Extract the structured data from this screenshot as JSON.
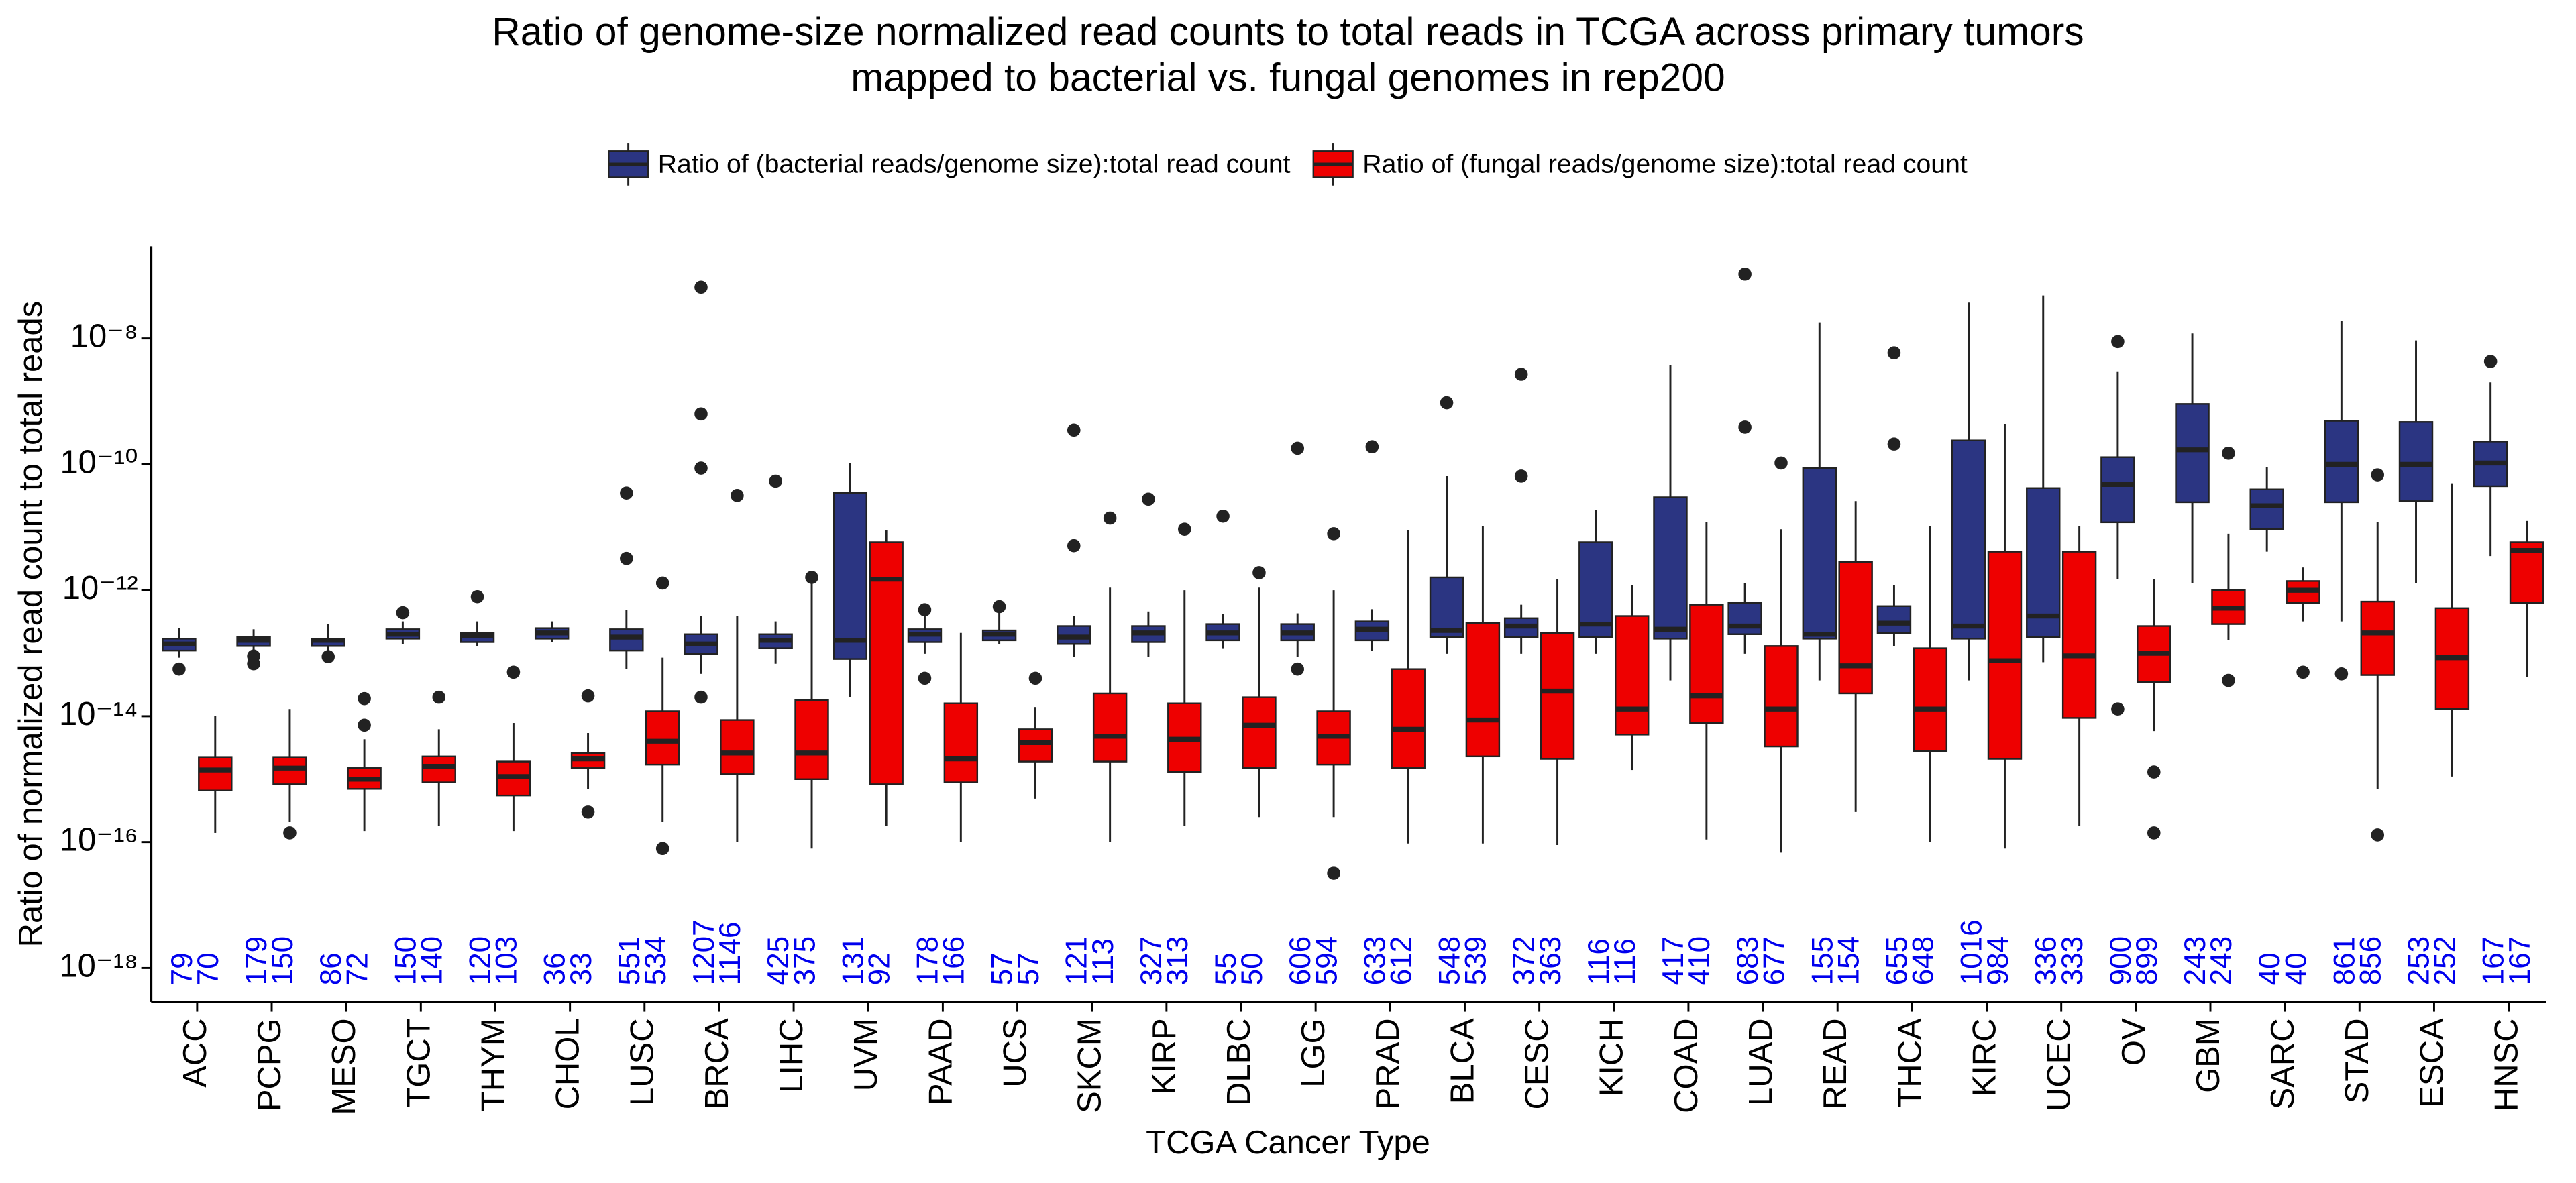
{
  "chart_data": {
    "type": "box",
    "title": [
      "Ratio of genome-size normalized read counts to total reads in TCGA across primary tumors",
      "mapped to bacterial vs. fungal genomes in rep200"
    ],
    "x_label": "TCGA Cancer Type",
    "y_label": "Ratio of normalized read count to total reads",
    "log_scale": true,
    "legend": "top",
    "count_color": "#0000ee",
    "categories": [
      "ACC",
      "PCPG",
      "MESO",
      "TGCT",
      "THYM",
      "CHOL",
      "LUSC",
      "BRCA",
      "LIHC",
      "UVM",
      "PAAD",
      "UCS",
      "SKCM",
      "KIRP",
      "DLBC",
      "LGG",
      "PRAD",
      "BLCA",
      "CESC",
      "KICH",
      "COAD",
      "LUAD",
      "READ",
      "THCA",
      "KIRC",
      "UCEC",
      "OV",
      "GBM",
      "SARC",
      "STAD",
      "ESCA",
      "HNSC"
    ],
    "ylim": [
      2.9e-19,
      2.9e-07
    ],
    "yticks": [
      {
        "value": 1e-08,
        "label": "10⁻⁸"
      },
      {
        "value": 1e-10,
        "label": "10⁻¹⁰"
      },
      {
        "value": 1e-12,
        "label": "10⁻¹²"
      },
      {
        "value": 1e-14,
        "label": "10⁻¹⁴"
      },
      {
        "value": 1e-16,
        "label": "10⁻¹⁶"
      },
      {
        "value": 1e-18,
        "label": "10⁻¹⁸"
      }
    ],
    "series": [
      {
        "name": "Ratio of (bacterial reads/genome size):total read count",
        "color": "#2b3582",
        "q1": [
          1.1e-13,
          1.3e-13,
          1.3e-13,
          1.7e-13,
          1.5e-13,
          1.7e-13,
          1.1e-13,
          9.8e-14,
          1.2e-13,
          8.1e-14,
          1.5e-13,
          1.6e-13,
          1.4e-13,
          1.5e-13,
          1.6e-13,
          1.6e-13,
          1.6e-13,
          1.8e-13,
          1.8e-13,
          1.8e-13,
          1.7e-13,
          2e-13,
          1.7e-13,
          2.1e-13,
          1.7e-13,
          1.8e-13,
          1.2e-11,
          2.5e-11,
          9.3e-12,
          2.5e-11,
          2.6e-11,
          4.5e-11
        ],
        "median": [
          1.4e-13,
          1.6e-13,
          1.6e-13,
          2e-13,
          1.9e-13,
          2.1e-13,
          1.8e-13,
          1.4e-13,
          1.6e-13,
          1.6e-13,
          2e-13,
          2e-13,
          1.8e-13,
          2.1e-13,
          2.1e-13,
          2.1e-13,
          2.4e-13,
          2.3e-13,
          2.7e-13,
          2.9e-13,
          2.4e-13,
          2.7e-13,
          2e-13,
          3e-13,
          2.7e-13,
          3.9e-13,
          4.8e-11,
          1.7e-10,
          2.2e-11,
          1e-10,
          1e-10,
          1.05e-10
        ],
        "q3": [
          1.7e-13,
          1.8e-13,
          1.7e-13,
          2.4e-13,
          2.1e-13,
          2.5e-13,
          2.4e-13,
          2e-13,
          2e-13,
          3.5e-11,
          2.4e-13,
          2.3e-13,
          2.7e-13,
          2.7e-13,
          2.9e-13,
          2.9e-13,
          3.2e-13,
          1.6e-12,
          3.6e-13,
          5.8e-12,
          3e-11,
          6.3e-13,
          8.7e-11,
          5.6e-13,
          2.4e-10,
          4.2e-11,
          1.3e-10,
          9.1e-10,
          4e-11,
          4.9e-10,
          4.7e-10,
          2.3e-10
        ],
        "whisker_low": [
          8.5e-14,
          1.1e-13,
          1.1e-13,
          1.4e-13,
          1.3e-13,
          1.5e-13,
          5.6e-14,
          4.7e-14,
          6.8e-14,
          2e-14,
          9.8e-14,
          1.4e-13,
          8.8e-14,
          8.8e-14,
          1.2e-13,
          8.8e-14,
          1.1e-13,
          9.8e-14,
          9.8e-14,
          9.8e-14,
          3.7e-14,
          9.8e-14,
          3.7e-14,
          1.3e-13,
          3.7e-14,
          7.2e-14,
          1.5e-12,
          1.3e-12,
          4.1e-12,
          3.2e-13,
          1.3e-12,
          3.5e-12
        ],
        "whisker_high": [
          2.5e-13,
          2.4e-13,
          2.9e-13,
          3.2e-13,
          3.2e-13,
          3.2e-13,
          4.9e-13,
          3.9e-13,
          3.2e-13,
          1.05e-10,
          3.9e-13,
          4.6e-13,
          3.9e-13,
          4.6e-13,
          4.2e-13,
          4.3e-13,
          5e-13,
          6.5e-11,
          5.9e-13,
          1.9e-11,
          3.8e-09,
          1.3e-12,
          1.8e-08,
          1.2e-12,
          3.7e-08,
          4.8e-08,
          3e-09,
          1.2e-08,
          9.1e-11,
          1.9e-08,
          9.3e-09,
          2e-09
        ],
        "outliers": [
          [
            5.6e-14
          ],
          [
            9e-14,
            6.8e-14
          ],
          [
            8.8e-14
          ],
          [
            4.4e-13
          ],
          [
            7.9e-13
          ],
          [],
          [
            3.5e-11,
            3.2e-12
          ],
          [
            6.5e-08,
            6.3e-10,
            8.7e-11,
            2e-14
          ],
          [
            5.4e-11
          ],
          [],
          [
            4.9e-13,
            4e-14
          ],
          [
            5.5e-13
          ],
          [
            3.5e-10,
            5.1e-12
          ],
          [
            2.8e-11
          ],
          [
            1.5e-11
          ],
          [
            1.8e-10,
            5.6e-14
          ],
          [
            1.9e-10
          ],
          [
            9.5e-10
          ],
          [
            2.7e-09,
            6.5e-11
          ],
          [],
          [],
          [
            1.05e-07,
            3.9e-10
          ],
          [],
          [
            5.9e-09,
            2.1e-10
          ],
          [],
          [],
          [
            8.9e-09,
            1.3e-14
          ],
          [],
          [],
          [
            4.7e-14
          ],
          [],
          [
            4.3e-09
          ]
        ],
        "n": [
          79,
          179,
          86,
          150,
          120,
          36,
          551,
          1207,
          425,
          131,
          178,
          57,
          121,
          327,
          55,
          606,
          633,
          548,
          372,
          116,
          417,
          683,
          155,
          655,
          1016,
          336,
          900,
          243,
          40,
          861,
          253,
          167
        ]
      },
      {
        "name": "Ratio of (fungal reads/genome size):total read count",
        "color": "#ee0000",
        "q1": [
          6.6e-16,
          8.3e-16,
          7e-16,
          8.9e-16,
          5.5e-16,
          1.5e-15,
          1.7e-15,
          1.2e-15,
          1e-15,
          8.3e-16,
          8.9e-16,
          1.9e-15,
          1.9e-15,
          1.3e-15,
          1.5e-15,
          1.7e-15,
          1.5e-15,
          2.3e-15,
          2.1e-15,
          5.1e-15,
          7.8e-15,
          3.3e-15,
          2.3e-14,
          2.8e-15,
          2.1e-15,
          9.4e-15,
          3.5e-14,
          2.9e-13,
          6.3e-13,
          4.5e-14,
          1.3e-14,
          6.3e-13
        ],
        "median": [
          1.4e-15,
          1.5e-15,
          1e-15,
          1.6e-15,
          1.1e-15,
          2.1e-15,
          4e-15,
          2.6e-15,
          2.6e-15,
          1.5e-12,
          2.1e-15,
          3.8e-15,
          4.8e-15,
          4.3e-15,
          7.2e-15,
          4.8e-15,
          6.2e-15,
          8.7e-15,
          2.5e-14,
          1.3e-14,
          2.1e-14,
          1.3e-14,
          6.3e-14,
          1.3e-14,
          7.6e-14,
          9.1e-14,
          1e-13,
          5.2e-13,
          1e-12,
          2.1e-13,
          8.5e-14,
          4.3e-12
        ],
        "q3": [
          2.2e-15,
          2.2e-15,
          1.5e-15,
          2.3e-15,
          1.9e-15,
          2.6e-15,
          1.2e-14,
          8.7e-15,
          1.8e-14,
          5.8e-12,
          1.6e-14,
          6.2e-15,
          2.3e-14,
          1.6e-14,
          2e-14,
          1.2e-14,
          5.6e-14,
          3e-13,
          2.1e-13,
          3.9e-13,
          5.9e-13,
          1.3e-13,
          2.8e-12,
          1.2e-13,
          4.1e-12,
          4.1e-12,
          2.7e-13,
          1e-12,
          1.4e-12,
          6.6e-13,
          5.2e-13,
          5.8e-12
        ],
        "whisker_low": [
          1.4e-16,
          2.1e-16,
          1.5e-16,
          1.8e-16,
          1.5e-16,
          7e-16,
          2.1e-16,
          1e-16,
          7.9e-17,
          1.8e-16,
          1e-16,
          4.9e-16,
          1e-16,
          1.8e-16,
          2.5e-16,
          2.5e-16,
          9.5e-17,
          9.5e-17,
          9e-17,
          1.4e-15,
          1.1e-16,
          6.8e-17,
          3e-16,
          1e-16,
          7.9e-17,
          1.8e-16,
          5.8e-15,
          1.6e-13,
          3.2e-13,
          7e-16,
          1.1e-15,
          4.2e-14
        ],
        "whisker_high": [
          1e-14,
          1.3e-14,
          4.3e-15,
          6.2e-15,
          7.8e-15,
          5.4e-15,
          8.5e-14,
          3.9e-13,
          1.3e-12,
          8.9e-12,
          2.1e-13,
          1.4e-14,
          1.1e-12,
          1e-12,
          1.1e-12,
          1e-12,
          8.9e-12,
          1.05e-11,
          1.5e-12,
          1.2e-12,
          1.2e-11,
          9.3e-12,
          2.6e-11,
          1.05e-11,
          4.4e-10,
          1.05e-11,
          1.5e-12,
          7.9e-12,
          2.3e-12,
          1.2e-11,
          5e-11,
          1.26e-11
        ],
        "outliers": [
          [],
          [
            1.4e-16
          ],
          [
            1.9e-14,
            7.2e-15
          ],
          [
            2e-14
          ],
          [
            5e-14
          ],
          [
            2.1e-14,
            3e-16
          ],
          [
            7.9e-17,
            1.3e-12
          ],
          [
            3.2e-11
          ],
          [
            1.6e-12
          ],
          [],
          [],
          [
            4e-14
          ],
          [
            1.4e-11
          ],
          [
            9.3e-12
          ],
          [
            1.9e-12
          ],
          [
            3.2e-17,
            7.9e-12
          ],
          [],
          [],
          [],
          [],
          [],
          [
            1.05e-10
          ],
          [],
          [],
          [],
          [],
          [
            1.4e-16,
            1.3e-15
          ],
          [
            1.5e-10,
            3.7e-14
          ],
          [
            5e-14
          ],
          [
            6.8e-11,
            1.3e-16
          ],
          [],
          []
        ],
        "n": [
          70,
          150,
          72,
          140,
          103,
          33,
          534,
          1146,
          375,
          92,
          166,
          57,
          113,
          313,
          50,
          594,
          612,
          539,
          363,
          116,
          410,
          677,
          154,
          648,
          984,
          333,
          899,
          243,
          40,
          856,
          252,
          167
        ]
      }
    ]
  }
}
